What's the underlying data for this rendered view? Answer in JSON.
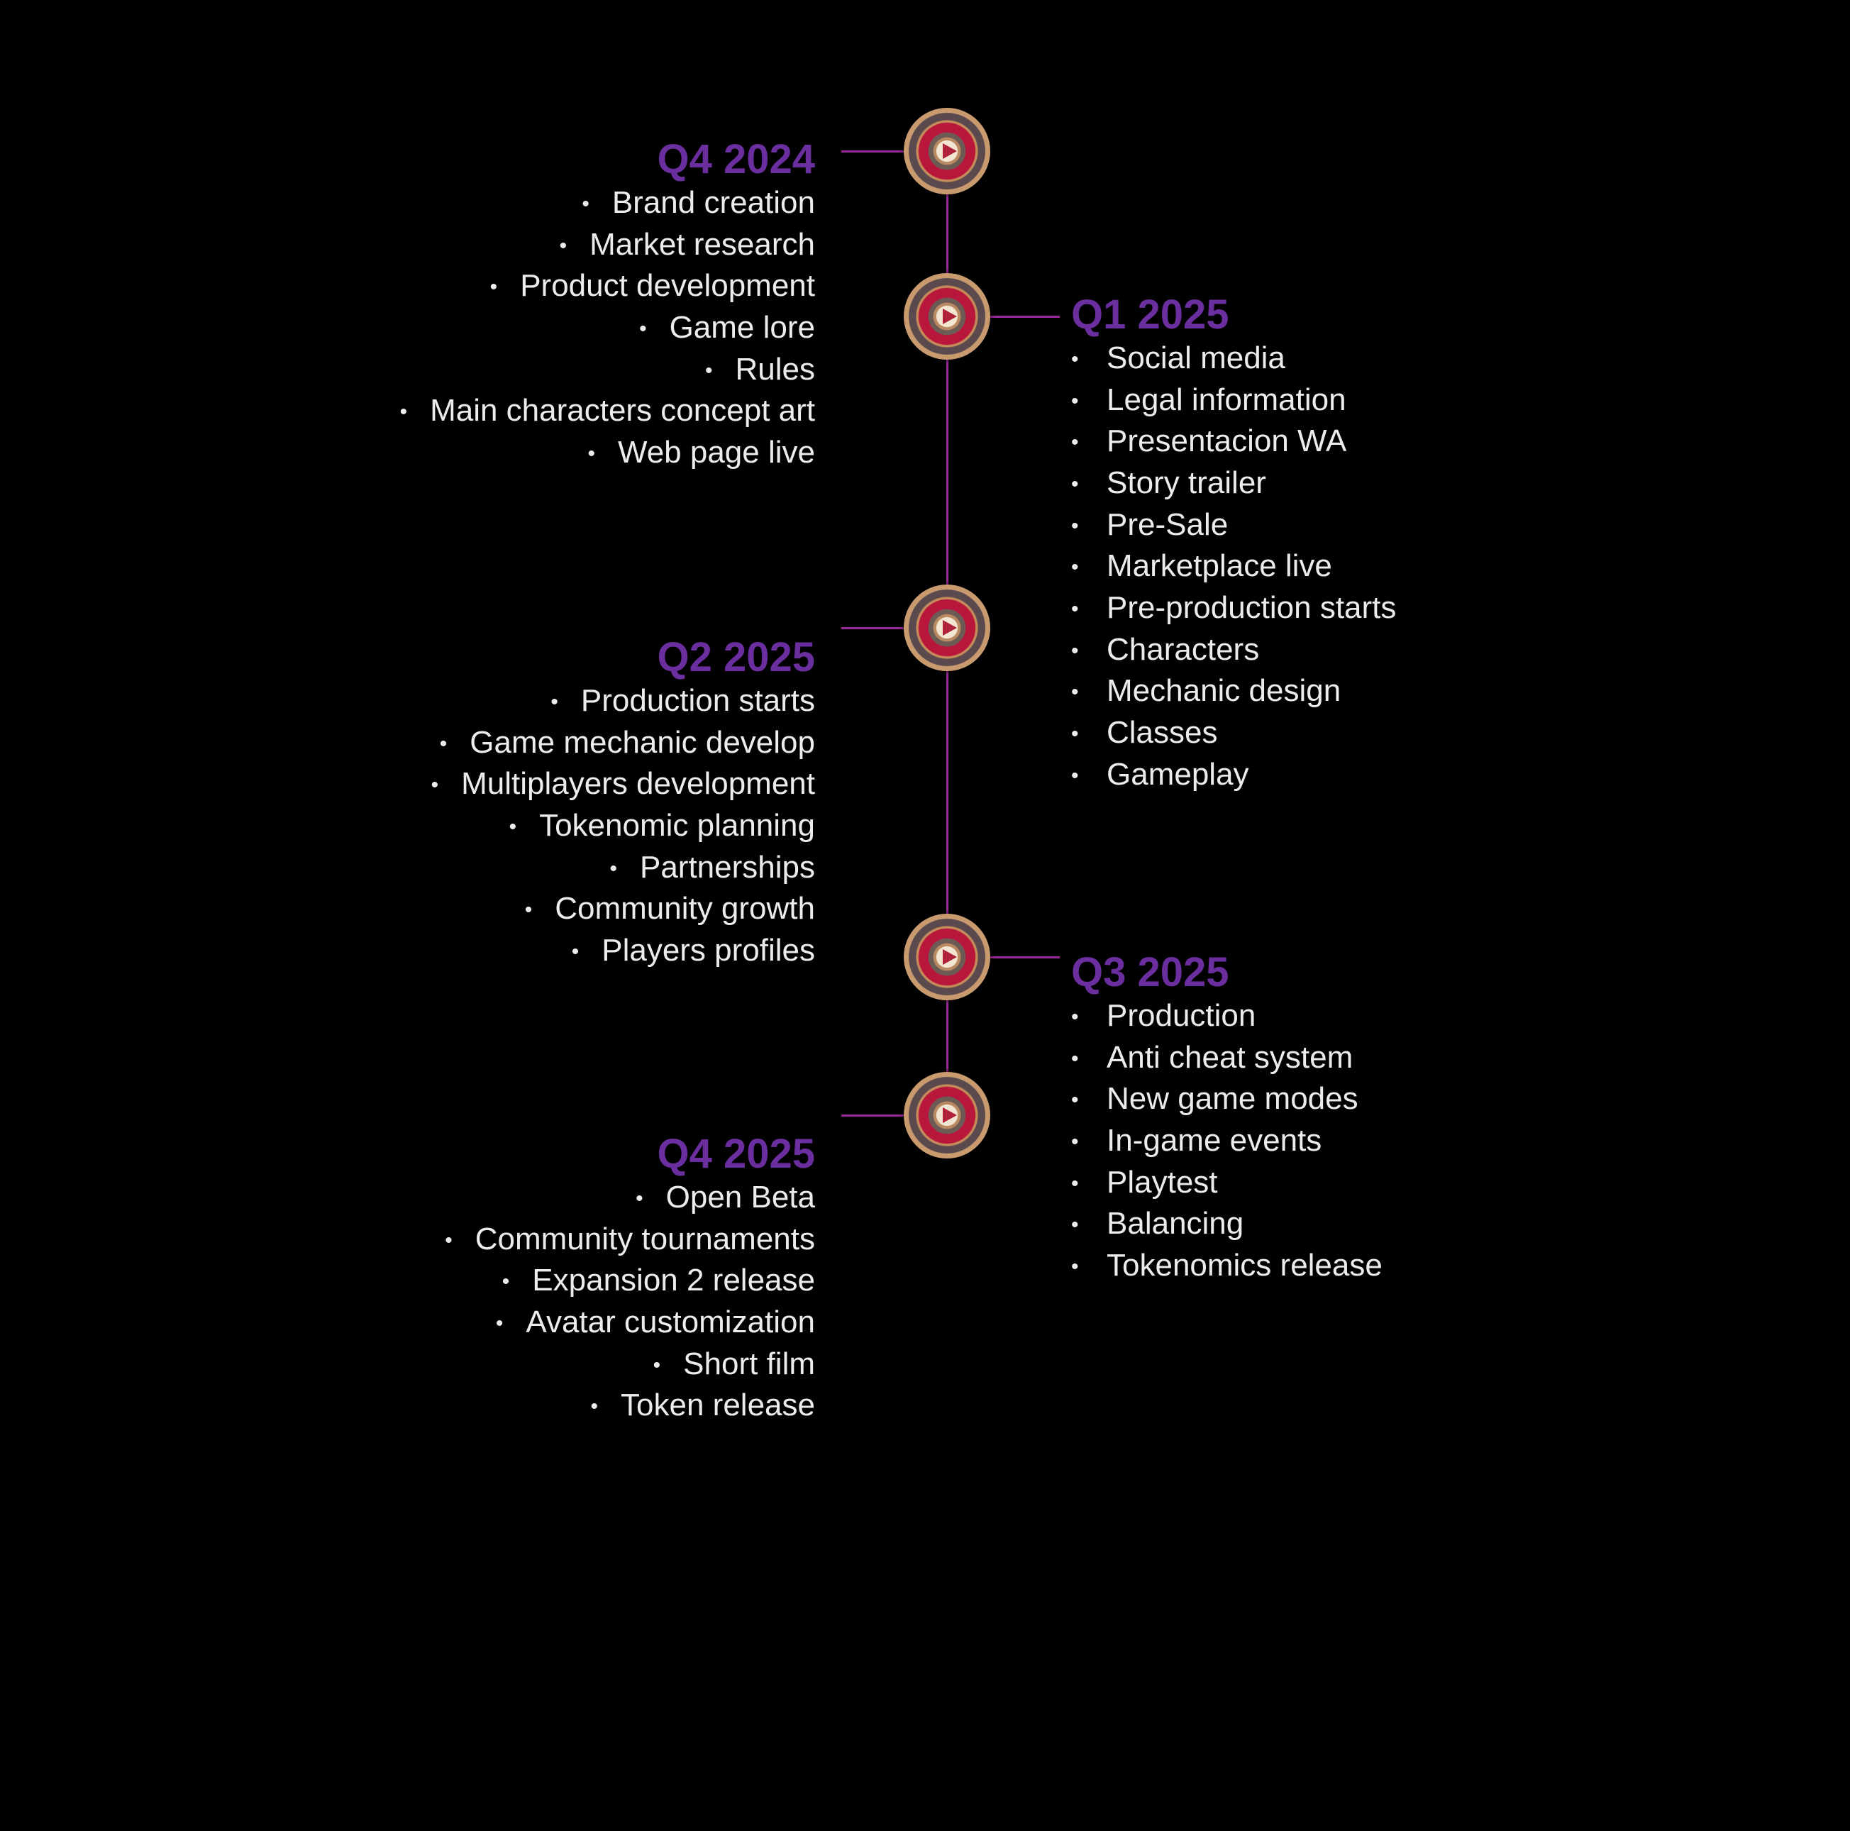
{
  "roadmap": {
    "accent_color": "#6a2e9e",
    "line_color": "#9a2a9a",
    "milestone_icon": "play-medallion-icon",
    "milestones": [
      {
        "title": "Q4 2024",
        "side": "left",
        "items": [
          "Brand creation",
          "Market research",
          "Product development",
          "Game lore",
          "Rules",
          "Main characters concept art",
          "Web page live"
        ]
      },
      {
        "title": "Q1 2025",
        "side": "right",
        "items": [
          "Social media",
          "Legal information",
          "Presentacion WA",
          "Story trailer",
          "Pre-Sale",
          "Marketplace live",
          "Pre-production starts",
          "Characters",
          "Mechanic design",
          "Classes",
          "Gameplay"
        ]
      },
      {
        "title": "Q2 2025",
        "side": "left",
        "items": [
          "Production starts",
          "Game mechanic develop",
          "Multiplayers development",
          "Tokenomic planning",
          "Partnerships",
          "Community growth",
          "Players profiles"
        ]
      },
      {
        "title": "Q3 2025",
        "side": "right",
        "items": [
          "Production",
          "Anti cheat system",
          "New game modes",
          "In-game events",
          "Playtest",
          "Balancing",
          "Tokenomics release"
        ]
      },
      {
        "title": "Q4 2025",
        "side": "left",
        "items": [
          "Open Beta",
          "Community tournaments",
          "Expansion 2 release",
          "Avatar customization",
          "Short film",
          "Token release"
        ]
      }
    ]
  }
}
